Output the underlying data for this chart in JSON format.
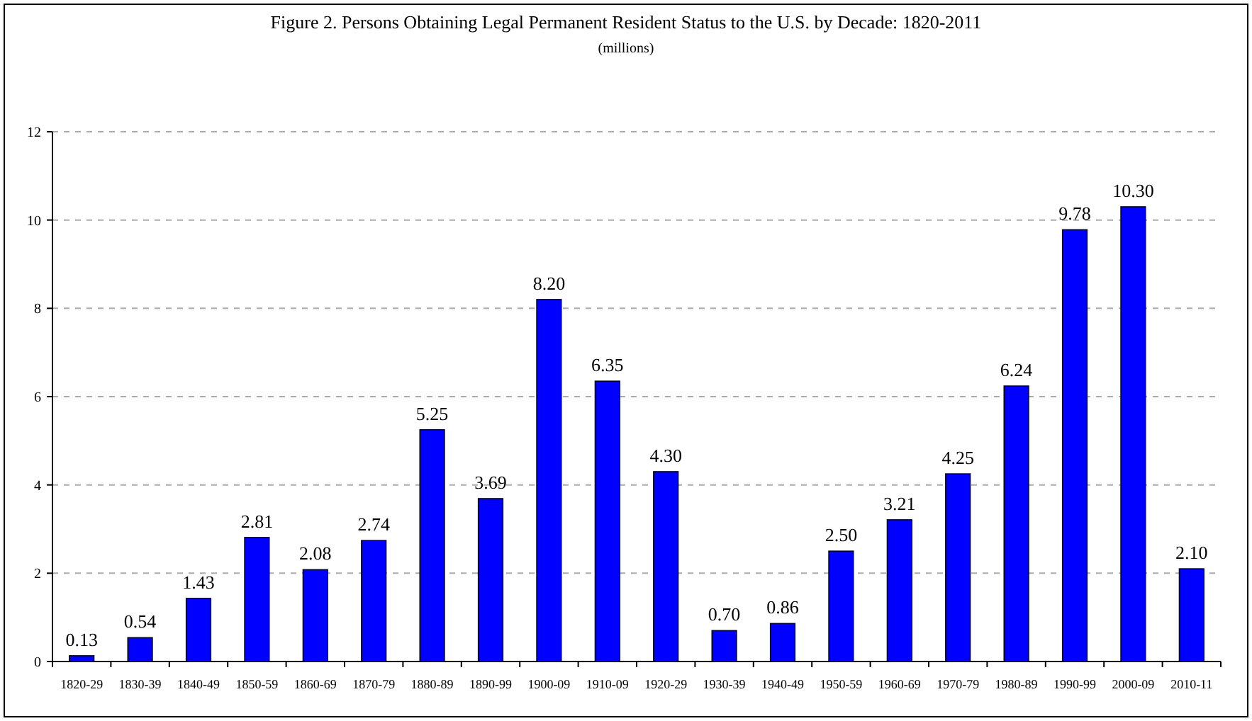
{
  "chart_data": {
    "type": "bar",
    "title": "Figure 2. Persons Obtaining Legal Permanent Resident Status to the U.S. by Decade: 1820-2011",
    "subtitle": "(millions)",
    "categories": [
      "1820-29",
      "1830-39",
      "1840-49",
      "1850-59",
      "1860-69",
      "1870-79",
      "1880-89",
      "1890-99",
      "1900-09",
      "1910-09",
      "1920-29",
      "1930-39",
      "1940-49",
      "1950-59",
      "1960-69",
      "1970-79",
      "1980-89",
      "1990-99",
      "2000-09",
      "2010-11"
    ],
    "values": [
      0.13,
      0.54,
      1.43,
      2.81,
      2.08,
      2.74,
      5.25,
      3.69,
      8.2,
      6.35,
      4.3,
      0.7,
      0.86,
      2.5,
      3.21,
      4.25,
      6.24,
      9.78,
      10.3,
      2.1
    ],
    "value_labels": [
      "0.13",
      "0.54",
      "1.43",
      "2.81",
      "2.08",
      "2.74",
      "5.25",
      "3.69",
      "8.20",
      "6.35",
      "4.30",
      "0.70",
      "0.86",
      "2.50",
      "3.21",
      "4.25",
      "6.24",
      "9.78",
      "10.30",
      "2.10"
    ],
    "color": "#0000ff",
    "ylim": [
      0,
      12
    ],
    "yticks": [
      0,
      2,
      4,
      6,
      8,
      10,
      12
    ],
    "grid": "y"
  }
}
